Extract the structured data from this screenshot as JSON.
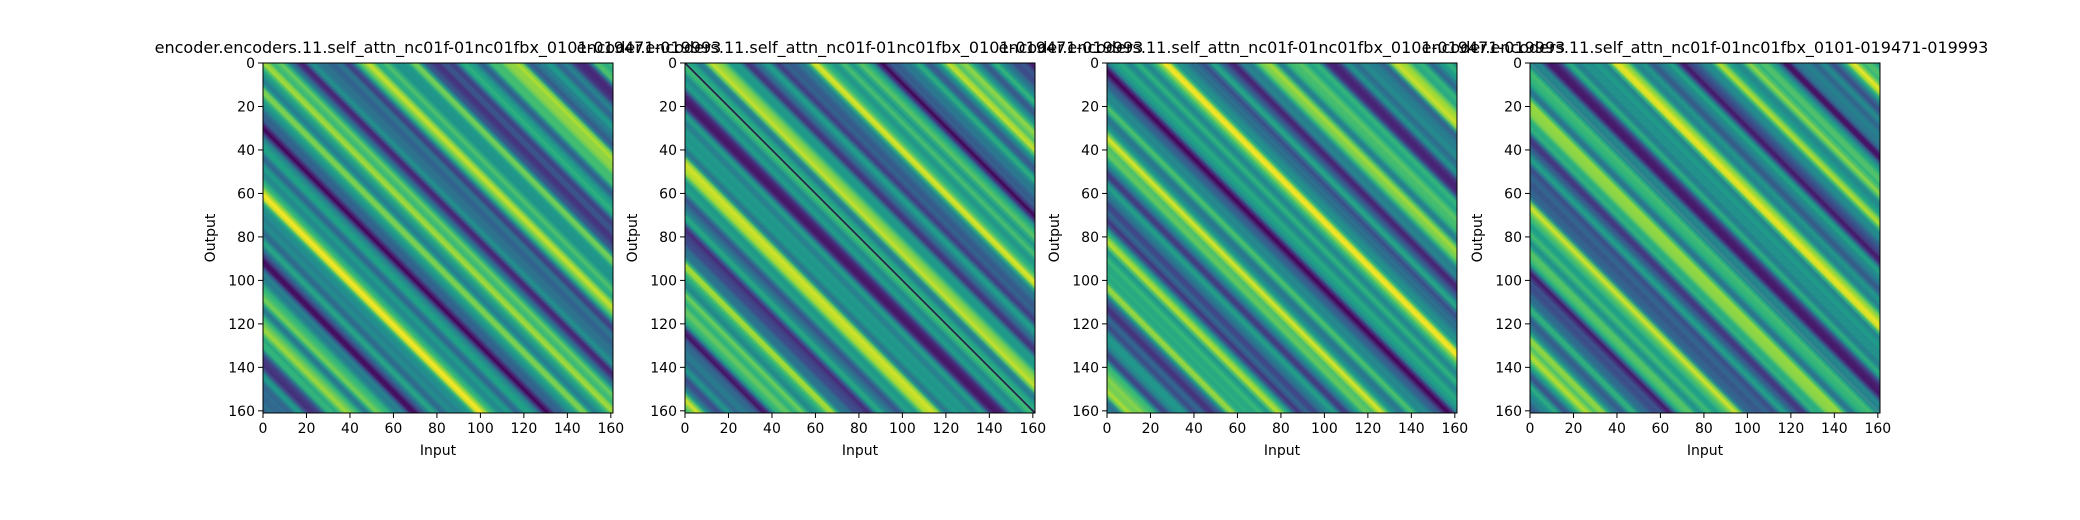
{
  "chart_data": [
    {
      "type": "heatmap",
      "title": "encoder.encoders.11.self_attn_nc01f-01nc01fbx_0101-019471-019993",
      "xlabel": "Input",
      "ylabel": "Output",
      "xlim": [
        0,
        161
      ],
      "ylim": [
        161,
        0
      ],
      "xticks": [
        0,
        20,
        40,
        60,
        80,
        100,
        120,
        140,
        160
      ],
      "yticks": [
        0,
        20,
        40,
        60,
        80,
        100,
        120,
        140,
        160
      ],
      "colormap": "viridis",
      "pattern": "diagonal bands"
    },
    {
      "type": "heatmap",
      "title": "encoder.encoders.11.self_attn_nc01f-01nc01fbx_0101-019471-019993",
      "xlabel": "Input",
      "ylabel": "Output",
      "xlim": [
        0,
        161
      ],
      "ylim": [
        161,
        0
      ],
      "xticks": [
        0,
        20,
        40,
        60,
        80,
        100,
        120,
        140,
        160
      ],
      "yticks": [
        0,
        20,
        40,
        60,
        80,
        100,
        120,
        140,
        160
      ],
      "colormap": "viridis",
      "pattern": "diagonal bands"
    },
    {
      "type": "heatmap",
      "title": "encoder.encoders.11.self_attn_nc01f-01nc01fbx_0101-019471-019993",
      "xlabel": "Input",
      "ylabel": "Output",
      "xlim": [
        0,
        161
      ],
      "ylim": [
        161,
        0
      ],
      "xticks": [
        0,
        20,
        40,
        60,
        80,
        100,
        120,
        140,
        160
      ],
      "yticks": [
        0,
        20,
        40,
        60,
        80,
        100,
        120,
        140,
        160
      ],
      "colormap": "viridis",
      "pattern": "diagonal bands"
    },
    {
      "type": "heatmap",
      "title": "encoder.encoders.11.self_attn_nc01f-01nc01fbx_0101-019471-019993",
      "xlabel": "Input",
      "ylabel": "Output",
      "xlim": [
        0,
        161
      ],
      "ylim": [
        161,
        0
      ],
      "xticks": [
        0,
        20,
        40,
        60,
        80,
        100,
        120,
        140,
        160
      ],
      "yticks": [
        0,
        20,
        40,
        60,
        80,
        100,
        120,
        140,
        160
      ],
      "colormap": "viridis",
      "pattern": "diagonal bands"
    }
  ]
}
